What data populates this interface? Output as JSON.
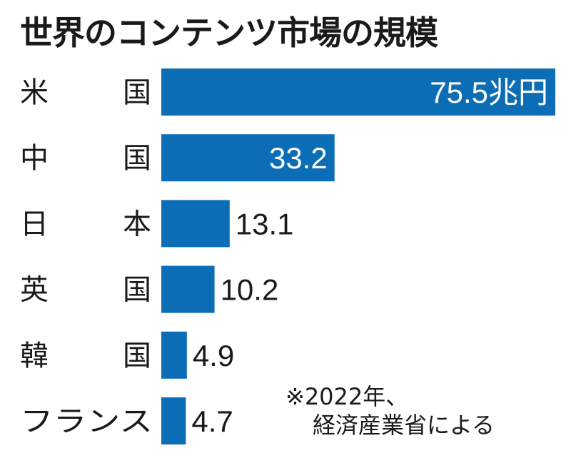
{
  "chart_data": {
    "type": "bar",
    "orientation": "horizontal",
    "title": "世界のコンテンツ市場の規模",
    "categories": [
      [
        "米",
        "国"
      ],
      [
        "中",
        "国"
      ],
      [
        "日",
        "本"
      ],
      [
        "英",
        "国"
      ],
      [
        "韓",
        "国"
      ],
      [
        "フランス",
        ""
      ]
    ],
    "values": [
      75.5,
      33.2,
      13.1,
      10.2,
      4.9,
      4.7
    ],
    "value_labels": [
      "75.5兆円",
      "33.2",
      "13.1",
      "10.2",
      "4.9",
      "4.7"
    ],
    "unit": "兆円",
    "xlim": [
      0,
      75.5
    ],
    "grid": false,
    "bar_color": "#0b6db5",
    "annotation": [
      "※2022年、",
      "経済産業省による"
    ]
  }
}
